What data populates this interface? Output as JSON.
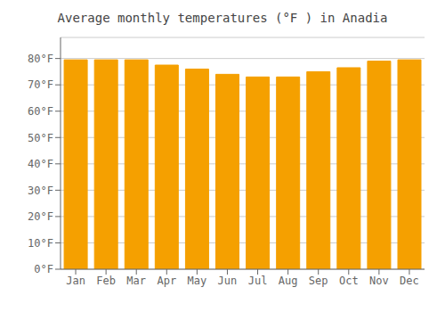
{
  "chart_data": {
    "type": "bar",
    "title": "Average monthly temperatures (°F ) in Anadia",
    "categories": [
      "Jan",
      "Feb",
      "Mar",
      "Apr",
      "May",
      "Jun",
      "Jul",
      "Aug",
      "Sep",
      "Oct",
      "Nov",
      "Dec"
    ],
    "values": [
      79.5,
      79.5,
      79.5,
      77.5,
      76.0,
      74.0,
      73.0,
      73.0,
      75.0,
      76.5,
      79.0,
      79.5
    ],
    "color": "#F5A000",
    "ylim": [
      0,
      88
    ],
    "yticks": [
      {
        "value": 0,
        "label": "0°F"
      },
      {
        "value": 10,
        "label": "10°F"
      },
      {
        "value": 20,
        "label": "20°F"
      },
      {
        "value": 30,
        "label": "30°F"
      },
      {
        "value": 40,
        "label": "40°F"
      },
      {
        "value": 50,
        "label": "50°F"
      },
      {
        "value": 60,
        "label": "60°F"
      },
      {
        "value": 70,
        "label": "70°F"
      },
      {
        "value": 80,
        "label": "80°F"
      }
    ],
    "grid": true
  }
}
